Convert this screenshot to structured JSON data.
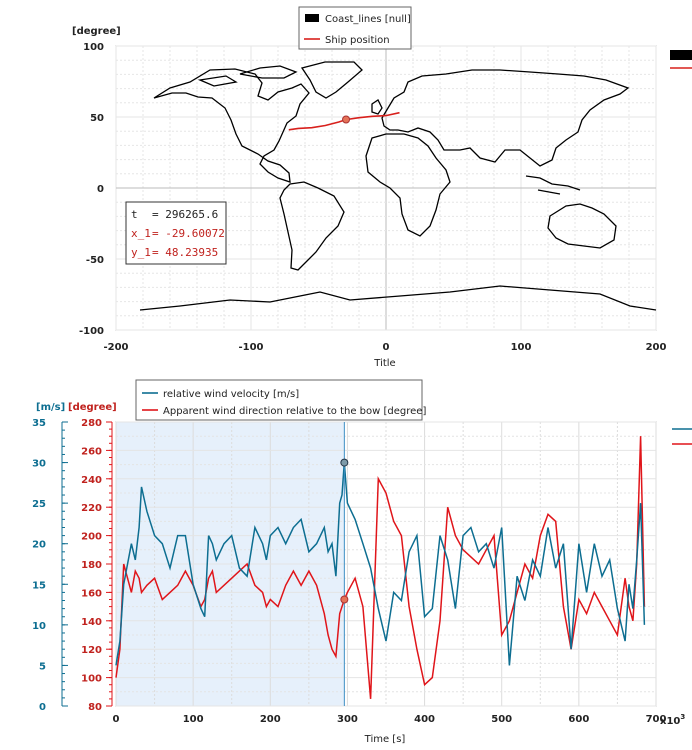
{
  "colors": {
    "coast": "#000000",
    "ship": "#d8201c",
    "wind_velocity": "#0d6e91",
    "wind_direction": "#e0151a",
    "shade": "#e6f0fb",
    "grid": "#cfcfcf"
  },
  "chart_data": [
    {
      "type": "line",
      "title": "",
      "xlabel": "Title",
      "ylabel": "[degree]",
      "xlim": [
        -200,
        200
      ],
      "ylim": [
        -100,
        100
      ],
      "xticks": [
        "-200",
        "-100",
        "0",
        "100",
        "200"
      ],
      "yticks": [
        "100",
        "50",
        "0",
        "-50",
        "-100"
      ],
      "legend": [
        "Coast_lines [null]",
        "Ship position"
      ],
      "series": [
        {
          "name": "Ship position",
          "x": [
            -72,
            -65,
            -55,
            -45,
            -35,
            -29.6,
            -20,
            -10,
            0,
            10
          ],
          "y": [
            41,
            42,
            42.5,
            44,
            46.5,
            48.2,
            49.5,
            50.5,
            51,
            53
          ]
        }
      ],
      "marker": {
        "x": -29.60072,
        "y": 48.23935
      },
      "readout": {
        "t_label": "t",
        "t_value": "= 296265.6",
        "x_label": "x_1",
        "x_value": "= -29.60072",
        "y_label": "y_1",
        "y_value": "= 48.23935"
      }
    },
    {
      "type": "line",
      "xlabel": "Time [s]",
      "x_multiplier": "x10",
      "x_multiplier_exp": "3",
      "xlim": [
        0,
        700
      ],
      "xticks": [
        "0",
        "100",
        "200",
        "300",
        "400",
        "500",
        "600",
        "700"
      ],
      "y_left_label": "[m/s]",
      "y_left_lim": [
        0,
        35
      ],
      "y_left_ticks": [
        "35",
        "30",
        "25",
        "20",
        "15",
        "10",
        "5",
        "0"
      ],
      "y_right_label": "[degree]",
      "y_right_lim": [
        80,
        280
      ],
      "y_right_ticks": [
        "280",
        "260",
        "240",
        "220",
        "200",
        "180",
        "160",
        "140",
        "120",
        "100",
        "80"
      ],
      "cursor_x": 296,
      "series": [
        {
          "name": "relative wind velocity [m/s]",
          "axis": "left",
          "x": [
            0,
            5,
            10,
            20,
            25,
            30,
            33,
            40,
            50,
            60,
            70,
            80,
            90,
            100,
            110,
            115,
            120,
            125,
            130,
            140,
            150,
            160,
            170,
            180,
            190,
            195,
            200,
            210,
            220,
            230,
            240,
            250,
            260,
            270,
            275,
            280,
            285,
            290,
            293,
            296,
            300,
            310,
            320,
            330,
            340,
            350,
            360,
            370,
            380,
            390,
            400,
            410,
            420,
            430,
            440,
            450,
            460,
            470,
            480,
            490,
            500,
            510,
            520,
            530,
            540,
            550,
            560,
            570,
            580,
            590,
            600,
            610,
            620,
            630,
            640,
            650,
            660,
            665,
            670,
            675,
            680,
            685
          ],
          "y": [
            5,
            8,
            15,
            20,
            18,
            22,
            27,
            24,
            21,
            20,
            17,
            21,
            21,
            15,
            12,
            11,
            21,
            20,
            18,
            20,
            21,
            17,
            16,
            22,
            20,
            18,
            21,
            22,
            20,
            22,
            23,
            19,
            20,
            22,
            19,
            20,
            16,
            25,
            26,
            30,
            25,
            23,
            20,
            17,
            12,
            8,
            14,
            13,
            19,
            21,
            11,
            12,
            21,
            18,
            12,
            21,
            22,
            19,
            20,
            17,
            22,
            5,
            16,
            13,
            18,
            16,
            22,
            17,
            20,
            7,
            20,
            14,
            20,
            16,
            18,
            12,
            8,
            15,
            12,
            18,
            25,
            10
          ]
        },
        {
          "name": "Apparent wind direction relative to the bow [degree]",
          "axis": "right",
          "x": [
            0,
            5,
            10,
            20,
            25,
            30,
            33,
            40,
            50,
            60,
            70,
            80,
            90,
            100,
            110,
            115,
            120,
            125,
            130,
            140,
            150,
            160,
            170,
            180,
            190,
            195,
            200,
            210,
            220,
            230,
            240,
            250,
            260,
            270,
            275,
            280,
            285,
            290,
            293,
            296,
            300,
            310,
            320,
            330,
            340,
            350,
            360,
            370,
            380,
            390,
            400,
            410,
            420,
            430,
            440,
            450,
            460,
            470,
            480,
            490,
            500,
            510,
            520,
            530,
            540,
            550,
            560,
            570,
            580,
            590,
            600,
            610,
            620,
            630,
            640,
            650,
            660,
            665,
            670,
            675,
            680,
            685
          ],
          "y": [
            100,
            120,
            180,
            160,
            175,
            170,
            160,
            165,
            170,
            155,
            160,
            165,
            175,
            165,
            150,
            155,
            170,
            175,
            160,
            165,
            170,
            175,
            180,
            165,
            160,
            150,
            155,
            150,
            165,
            175,
            165,
            175,
            165,
            145,
            130,
            120,
            115,
            145,
            150,
            155,
            160,
            170,
            150,
            85,
            240,
            230,
            210,
            200,
            150,
            120,
            95,
            100,
            140,
            220,
            200,
            190,
            185,
            180,
            190,
            200,
            130,
            140,
            160,
            180,
            170,
            200,
            215,
            210,
            150,
            120,
            155,
            145,
            160,
            150,
            140,
            130,
            170,
            150,
            140,
            180,
            270,
            150
          ]
        }
      ],
      "cursor_values": {
        "left": 30,
        "right": 155
      }
    }
  ]
}
